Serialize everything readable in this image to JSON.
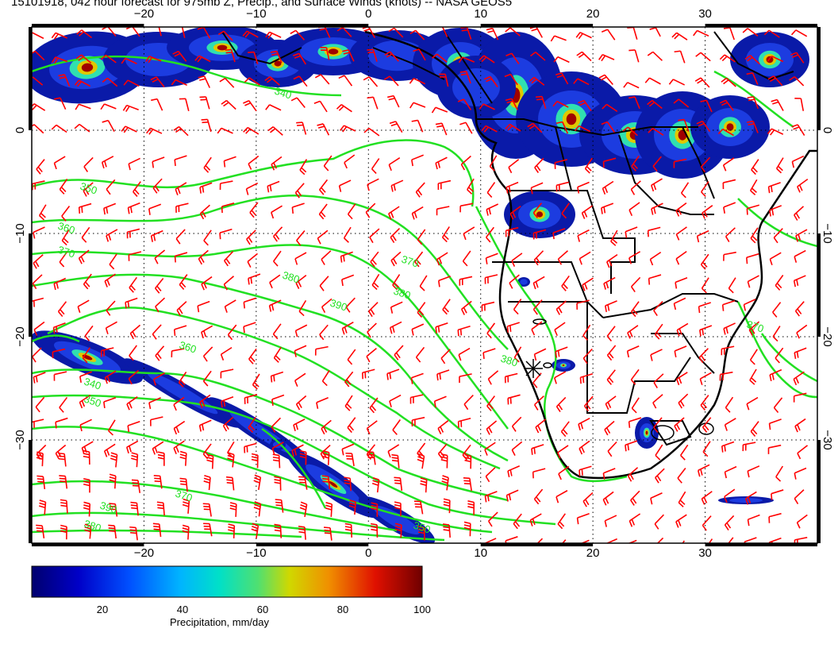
{
  "title": "15101918, 042 hour forecast for 975mb Z, Precip., and Surface Winds (knots) -- NASA GEOS5",
  "map": {
    "lon_range": [
      -30,
      40
    ],
    "lat_range": [
      -40,
      10
    ],
    "top_lon_ticks": [
      "−20",
      "−10",
      "0",
      "10",
      "20",
      "30"
    ],
    "bottom_lon_ticks": [
      "−20",
      "−10",
      "0",
      "10",
      "20",
      "30"
    ],
    "lat_ticks": [
      "0",
      "−10",
      "−20",
      "−30"
    ],
    "right_lat_ticks": [
      "0",
      "−10",
      "−20",
      "−30"
    ],
    "contour_labels": [
      "350",
      "360",
      "370",
      "380",
      "390",
      "340",
      "350",
      "360",
      "370",
      "380",
      "380",
      "390",
      "370",
      "380",
      "350",
      "340",
      "370"
    ],
    "colors": {
      "contour": "#22e022",
      "barb": "#ff0000",
      "coast": "#000000",
      "grid": "#000000"
    }
  },
  "colorbar": {
    "label": "Precipitation, mm/day",
    "ticks": [
      "20",
      "40",
      "60",
      "80",
      "100"
    ],
    "stops": [
      "#00006e",
      "#0000c8",
      "#0050ff",
      "#00b4ff",
      "#00e0c8",
      "#50e070",
      "#d0d800",
      "#f09000",
      "#e01000",
      "#700000"
    ]
  }
}
